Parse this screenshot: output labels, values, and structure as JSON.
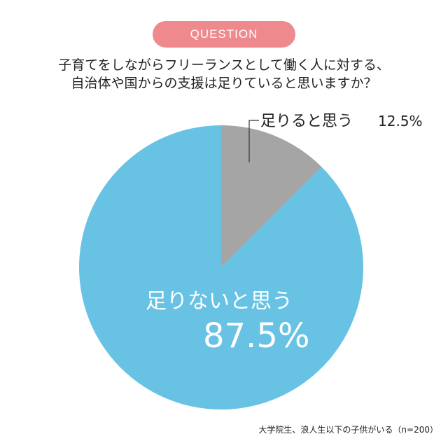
{
  "header": {
    "badge": "QUESTION",
    "question_line1": "子育てをしながらフリーランスとして働く人に対する、",
    "question_line2": "自治体や国からの支援は足りていると思いますか？"
  },
  "footnote": "大学院生、浪人生以下の子供がいる（n=200）",
  "colors": {
    "badge": "#ee8a8d",
    "slice_no": "#67c2e4",
    "slice_yes": "#a5a5a5"
  },
  "chart_data": {
    "type": "pie",
    "slices": [
      {
        "label": "足りると思う",
        "value": 12.5,
        "value_text": "12.5%",
        "color": "#a5a5a5"
      },
      {
        "label": "足りないと思う",
        "value": 87.5,
        "value_text": "87.5%",
        "color": "#67c2e4"
      }
    ],
    "unit": "%"
  }
}
